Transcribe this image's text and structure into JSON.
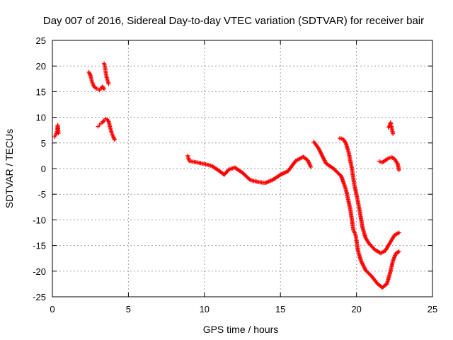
{
  "chart_data": {
    "type": "scatter",
    "title": "Day 007 of 2016, Sidereal Day-to-day VTEC variation (SDTVAR) for receiver bair",
    "xlabel": "GPS time / hours",
    "ylabel": "SDTVAR / TECUs",
    "xlim": [
      0,
      25
    ],
    "ylim": [
      -25,
      25
    ],
    "xticks": [
      0,
      5,
      10,
      15,
      20,
      25
    ],
    "yticks": [
      -25,
      -20,
      -15,
      -10,
      -5,
      0,
      5,
      10,
      15,
      20,
      25
    ],
    "grid": true,
    "marker": "+",
    "color": "#ff0000",
    "series": [
      {
        "name": "seg1",
        "x": [
          0.15,
          0.2,
          0.25,
          0.3,
          0.35,
          0.4
        ],
        "y": [
          6.2,
          6.5,
          6.8,
          7.0,
          8.5,
          6.9
        ]
      },
      {
        "name": "seg2",
        "x": [
          2.4,
          2.5,
          2.6,
          2.7,
          2.8,
          2.9,
          3.0,
          3.1,
          3.2,
          3.3,
          3.4
        ],
        "y": [
          18.8,
          18.2,
          17.0,
          16.2,
          15.8,
          15.6,
          15.5,
          15.3,
          15.6,
          16.0,
          15.5
        ]
      },
      {
        "name": "seg3",
        "x": [
          3.4,
          3.45,
          3.5,
          3.55,
          3.6,
          3.65,
          3.7
        ],
        "y": [
          20.5,
          20.0,
          19.0,
          18.0,
          17.5,
          17.0,
          16.5
        ]
      },
      {
        "name": "seg4",
        "x": [
          3.0,
          3.1,
          3.2,
          3.3,
          3.4,
          3.5,
          3.6,
          3.7,
          3.8,
          3.9,
          4.0,
          4.1
        ],
        "y": [
          8.2,
          8.5,
          8.8,
          9.0,
          9.4,
          9.7,
          9.6,
          9.2,
          8.0,
          7.0,
          6.2,
          5.6
        ]
      },
      {
        "name": "seg5",
        "x": [
          8.9,
          9.0,
          9.5,
          10.0,
          10.5,
          11.0,
          11.3,
          11.6,
          12.0,
          12.5,
          13.0,
          13.5,
          14.0,
          14.5,
          15.0,
          15.5,
          16.0,
          16.5,
          16.8,
          17.0
        ],
        "y": [
          2.5,
          1.5,
          1.2,
          0.9,
          0.5,
          -0.5,
          -1.2,
          -0.2,
          0.2,
          -0.8,
          -2.2,
          -2.6,
          -2.8,
          -2.2,
          -1.2,
          -0.5,
          1.5,
          2.3,
          1.6,
          0.3
        ]
      },
      {
        "name": "seg6",
        "x": [
          17.2,
          17.5,
          18.0,
          18.5,
          19.0,
          19.3,
          19.6,
          19.8,
          19.95,
          20.0,
          20.1,
          20.3,
          20.6,
          21.0,
          21.4,
          21.7,
          22.0,
          22.2,
          22.4,
          22.6,
          22.8
        ],
        "y": [
          5.2,
          4.0,
          1.0,
          0.0,
          -1.5,
          -4.0,
          -8.0,
          -12.0,
          -13.0,
          -14.0,
          -16.0,
          -18.0,
          -19.8,
          -21.0,
          -22.5,
          -23.2,
          -22.5,
          -20.5,
          -18.0,
          -16.5,
          -16.2
        ]
      },
      {
        "name": "seg7",
        "x": [
          18.9,
          19.1,
          19.3,
          19.5,
          19.7,
          19.85,
          20.0,
          20.2,
          20.4,
          20.6,
          20.8,
          21.2,
          21.6,
          21.9,
          22.2,
          22.5,
          22.8
        ],
        "y": [
          5.9,
          5.8,
          5.0,
          3.0,
          0.0,
          -3.0,
          -5.0,
          -8.0,
          -11.5,
          -13.5,
          -14.5,
          -15.8,
          -16.5,
          -16.0,
          -14.5,
          -13.0,
          -12.5
        ]
      },
      {
        "name": "seg8",
        "x": [
          21.5,
          21.7,
          21.9,
          22.1,
          22.3,
          22.5,
          22.7,
          22.8
        ],
        "y": [
          1.4,
          1.2,
          1.6,
          2.0,
          2.2,
          1.9,
          1.0,
          -0.3
        ]
      },
      {
        "name": "seg9",
        "x": [
          22.1,
          22.2,
          22.25,
          22.3,
          22.35,
          22.4
        ],
        "y": [
          8.0,
          8.5,
          9.0,
          8.2,
          7.5,
          6.8
        ]
      }
    ]
  }
}
